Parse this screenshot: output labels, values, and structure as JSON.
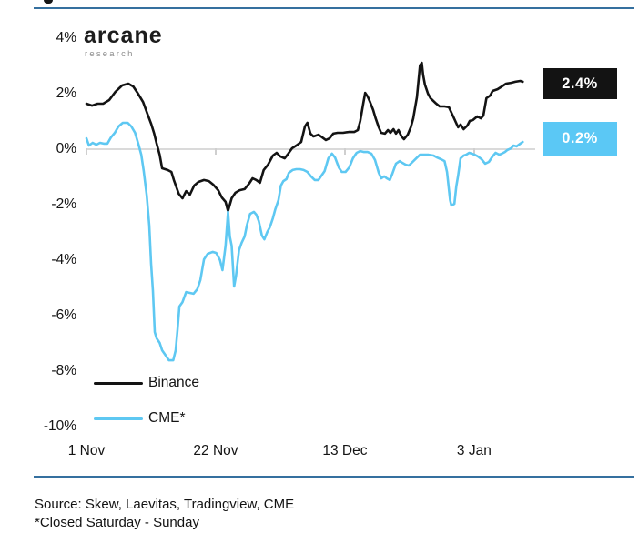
{
  "logo": {
    "brand": "arcane",
    "sub": "research"
  },
  "badges": {
    "binance_value": "2.4%",
    "cme_value": "0.2%"
  },
  "legend": [
    {
      "label": "Binance"
    },
    {
      "label": "CME*"
    }
  ],
  "footer": {
    "source_line": "Source: Skew, Laevitas, Tradingview, CME",
    "note_line": "*Closed Saturday - Sunday"
  },
  "colors": {
    "accent_rule": "#35709f",
    "binance_line": "#131313",
    "cme_line": "#5ec8f2",
    "badge_black_bg": "#131313",
    "badge_blue_bg": "#5bc8f5",
    "zero_gridline": "#dadada"
  },
  "chart_data": {
    "type": "line",
    "title": "",
    "xlabel": "",
    "ylabel": "",
    "ylim": [
      -10,
      4
    ],
    "grid": "zero-line-only",
    "legend_position": "inside-bottom-left",
    "y_ticks": [
      "4%",
      "2%",
      "0%",
      "-2%",
      "-4%",
      "-6%",
      "-8%",
      "-10%"
    ],
    "y_tick_values": [
      4,
      2,
      0,
      -2,
      -4,
      -6,
      -8,
      -10
    ],
    "x_ticks": [
      "1 Nov",
      "22 Nov",
      "13 Dec",
      "3 Jan"
    ],
    "x_tick_days": [
      0,
      21,
      42,
      63
    ],
    "series": [
      {
        "name": "Binance",
        "color": "#131313",
        "end_label": "2.4%",
        "points": [
          [
            0,
            1.64
          ],
          [
            0.9,
            1.57
          ],
          [
            1.8,
            1.64
          ],
          [
            2.7,
            1.64
          ],
          [
            3.7,
            1.77
          ],
          [
            4.7,
            2.07
          ],
          [
            5.8,
            2.3
          ],
          [
            6.8,
            2.36
          ],
          [
            7.6,
            2.26
          ],
          [
            8.3,
            2.03
          ],
          [
            9.2,
            1.7
          ],
          [
            9.9,
            1.28
          ],
          [
            10.5,
            0.92
          ],
          [
            11,
            0.56
          ],
          [
            11.4,
            0.2
          ],
          [
            11.9,
            -0.2
          ],
          [
            12.3,
            -0.69
          ],
          [
            13.2,
            -0.75
          ],
          [
            13.8,
            -0.82
          ],
          [
            14.2,
            -1.11
          ],
          [
            15,
            -1.61
          ],
          [
            15.6,
            -1.77
          ],
          [
            16.2,
            -1.51
          ],
          [
            16.8,
            -1.64
          ],
          [
            17.5,
            -1.31
          ],
          [
            18.2,
            -1.18
          ],
          [
            19.1,
            -1.11
          ],
          [
            19.9,
            -1.15
          ],
          [
            20.6,
            -1.28
          ],
          [
            21.4,
            -1.48
          ],
          [
            22,
            -1.74
          ],
          [
            22.6,
            -1.9
          ],
          [
            23,
            -2.23
          ],
          [
            23.6,
            -1.77
          ],
          [
            24.2,
            -1.57
          ],
          [
            24.9,
            -1.48
          ],
          [
            25.7,
            -1.44
          ],
          [
            26.4,
            -1.25
          ],
          [
            27,
            -1.05
          ],
          [
            27.6,
            -1.11
          ],
          [
            28.2,
            -1.21
          ],
          [
            28.8,
            -0.75
          ],
          [
            29.5,
            -0.56
          ],
          [
            30.3,
            -0.23
          ],
          [
            30.9,
            -0.13
          ],
          [
            31.5,
            -0.26
          ],
          [
            32.2,
            -0.33
          ],
          [
            32.8,
            -0.16
          ],
          [
            33.4,
            0.03
          ],
          [
            34.1,
            0.13
          ],
          [
            34.9,
            0.26
          ],
          [
            35.5,
            0.82
          ],
          [
            35.9,
            0.95
          ],
          [
            36.4,
            0.56
          ],
          [
            36.9,
            0.46
          ],
          [
            37.7,
            0.52
          ],
          [
            38.3,
            0.43
          ],
          [
            38.9,
            0.33
          ],
          [
            39.5,
            0.39
          ],
          [
            40.1,
            0.56
          ],
          [
            40.8,
            0.59
          ],
          [
            41.7,
            0.59
          ],
          [
            42.6,
            0.62
          ],
          [
            43.5,
            0.62
          ],
          [
            44.1,
            0.69
          ],
          [
            44.5,
            1.02
          ],
          [
            45,
            1.67
          ],
          [
            45.3,
            2.03
          ],
          [
            45.7,
            1.9
          ],
          [
            46.1,
            1.7
          ],
          [
            46.6,
            1.41
          ],
          [
            47,
            1.11
          ],
          [
            47.5,
            0.79
          ],
          [
            47.9,
            0.59
          ],
          [
            48.5,
            0.56
          ],
          [
            49,
            0.69
          ],
          [
            49.4,
            0.59
          ],
          [
            49.9,
            0.72
          ],
          [
            50.3,
            0.56
          ],
          [
            50.7,
            0.69
          ],
          [
            51.2,
            0.46
          ],
          [
            51.6,
            0.36
          ],
          [
            52.2,
            0.52
          ],
          [
            52.7,
            0.79
          ],
          [
            53.1,
            1.11
          ],
          [
            53.7,
            1.87
          ],
          [
            54.2,
            3.02
          ],
          [
            54.5,
            3.11
          ],
          [
            54.7,
            2.69
          ],
          [
            55,
            2.33
          ],
          [
            55.5,
            2
          ],
          [
            55.9,
            1.84
          ],
          [
            56.7,
            1.67
          ],
          [
            57.4,
            1.54
          ],
          [
            58.2,
            1.54
          ],
          [
            58.9,
            1.51
          ],
          [
            59.6,
            1.18
          ],
          [
            60.4,
            0.79
          ],
          [
            60.8,
            0.89
          ],
          [
            61.3,
            0.72
          ],
          [
            61.9,
            0.85
          ],
          [
            62.3,
            1.02
          ],
          [
            62.8,
            1.05
          ],
          [
            63.5,
            1.18
          ],
          [
            64.1,
            1.11
          ],
          [
            64.5,
            1.21
          ],
          [
            65,
            1.84
          ],
          [
            65.6,
            1.93
          ],
          [
            66,
            2.1
          ],
          [
            66.8,
            2.16
          ],
          [
            67.5,
            2.26
          ],
          [
            68.2,
            2.36
          ],
          [
            69,
            2.39
          ],
          [
            69.7,
            2.43
          ],
          [
            70.5,
            2.46
          ],
          [
            70.9,
            2.43
          ]
        ]
      },
      {
        "name": "CME*",
        "color": "#5ec8f2",
        "end_label": "0.2%",
        "points": [
          [
            0,
            0.39
          ],
          [
            0.4,
            0.13
          ],
          [
            1,
            0.23
          ],
          [
            1.6,
            0.16
          ],
          [
            2.2,
            0.23
          ],
          [
            2.8,
            0.2
          ],
          [
            3.4,
            0.2
          ],
          [
            4,
            0.43
          ],
          [
            4.6,
            0.59
          ],
          [
            5.2,
            0.82
          ],
          [
            5.9,
            0.95
          ],
          [
            6.7,
            0.95
          ],
          [
            7.3,
            0.82
          ],
          [
            7.9,
            0.59
          ],
          [
            8.5,
            0.13
          ],
          [
            8.9,
            -0.2
          ],
          [
            9.3,
            -0.79
          ],
          [
            9.8,
            -1.67
          ],
          [
            10.2,
            -2.75
          ],
          [
            10.5,
            -4.13
          ],
          [
            10.8,
            -5.11
          ],
          [
            11.1,
            -6.59
          ],
          [
            11.4,
            -6.82
          ],
          [
            11.9,
            -6.98
          ],
          [
            12.3,
            -7.25
          ],
          [
            12.8,
            -7.41
          ],
          [
            13.4,
            -7.61
          ],
          [
            14.1,
            -7.61
          ],
          [
            14.5,
            -7.25
          ],
          [
            14.8,
            -6.52
          ],
          [
            15.1,
            -5.67
          ],
          [
            15.6,
            -5.51
          ],
          [
            16.2,
            -5.15
          ],
          [
            16.8,
            -5.18
          ],
          [
            17.4,
            -5.21
          ],
          [
            18,
            -5.05
          ],
          [
            18.5,
            -4.72
          ],
          [
            19.1,
            -3.97
          ],
          [
            19.7,
            -3.77
          ],
          [
            20.5,
            -3.7
          ],
          [
            21.1,
            -3.74
          ],
          [
            21.7,
            -4
          ],
          [
            22.1,
            -4.36
          ],
          [
            22.6,
            -3.48
          ],
          [
            23,
            -2.26
          ],
          [
            23.3,
            -3.15
          ],
          [
            23.6,
            -3.48
          ],
          [
            24,
            -4.95
          ],
          [
            24.3,
            -4.56
          ],
          [
            24.8,
            -3.64
          ],
          [
            25.2,
            -3.38
          ],
          [
            25.7,
            -3.15
          ],
          [
            26.1,
            -2.72
          ],
          [
            26.6,
            -2.33
          ],
          [
            27.2,
            -2.26
          ],
          [
            27.6,
            -2.36
          ],
          [
            28,
            -2.59
          ],
          [
            28.5,
            -3.11
          ],
          [
            28.9,
            -3.25
          ],
          [
            29.4,
            -2.98
          ],
          [
            29.8,
            -2.82
          ],
          [
            30.3,
            -2.49
          ],
          [
            30.7,
            -2.16
          ],
          [
            31.2,
            -1.84
          ],
          [
            31.6,
            -1.31
          ],
          [
            32,
            -1.15
          ],
          [
            32.5,
            -1.08
          ],
          [
            32.9,
            -0.85
          ],
          [
            33.5,
            -0.75
          ],
          [
            34.1,
            -0.72
          ],
          [
            34.7,
            -0.72
          ],
          [
            35.3,
            -0.75
          ],
          [
            35.9,
            -0.82
          ],
          [
            36.5,
            -0.98
          ],
          [
            37.1,
            -1.11
          ],
          [
            37.7,
            -1.11
          ],
          [
            38.1,
            -0.98
          ],
          [
            38.7,
            -0.79
          ],
          [
            39.3,
            -0.33
          ],
          [
            39.9,
            -0.16
          ],
          [
            40.4,
            -0.3
          ],
          [
            41,
            -0.66
          ],
          [
            41.5,
            -0.82
          ],
          [
            42.1,
            -0.82
          ],
          [
            42.7,
            -0.66
          ],
          [
            43.3,
            -0.33
          ],
          [
            43.9,
            -0.13
          ],
          [
            44.5,
            -0.07
          ],
          [
            45.1,
            -0.1
          ],
          [
            45.7,
            -0.1
          ],
          [
            46.3,
            -0.16
          ],
          [
            46.9,
            -0.39
          ],
          [
            47.5,
            -0.85
          ],
          [
            47.9,
            -1.05
          ],
          [
            48.4,
            -0.98
          ],
          [
            48.8,
            -1.05
          ],
          [
            49.3,
            -1.11
          ],
          [
            49.7,
            -0.89
          ],
          [
            50.3,
            -0.52
          ],
          [
            50.9,
            -0.43
          ],
          [
            51.3,
            -0.49
          ],
          [
            51.9,
            -0.56
          ],
          [
            52.4,
            -0.59
          ],
          [
            53,
            -0.46
          ],
          [
            53.6,
            -0.33
          ],
          [
            54.2,
            -0.2
          ],
          [
            54.9,
            -0.2
          ],
          [
            55.6,
            -0.2
          ],
          [
            56.4,
            -0.23
          ],
          [
            57,
            -0.3
          ],
          [
            57.6,
            -0.36
          ],
          [
            58.2,
            -0.43
          ],
          [
            58.6,
            -0.82
          ],
          [
            59.1,
            -1.84
          ],
          [
            59.3,
            -2.03
          ],
          [
            59.8,
            -1.97
          ],
          [
            60.1,
            -1.34
          ],
          [
            60.4,
            -0.95
          ],
          [
            60.8,
            -0.33
          ],
          [
            61.3,
            -0.23
          ],
          [
            61.7,
            -0.2
          ],
          [
            62.2,
            -0.13
          ],
          [
            62.6,
            -0.16
          ],
          [
            63.1,
            -0.2
          ],
          [
            63.6,
            -0.26
          ],
          [
            64.2,
            -0.36
          ],
          [
            64.8,
            -0.52
          ],
          [
            65.4,
            -0.46
          ],
          [
            66,
            -0.26
          ],
          [
            66.5,
            -0.13
          ],
          [
            67.1,
            -0.2
          ],
          [
            67.5,
            -0.16
          ],
          [
            68,
            -0.1
          ],
          [
            68.4,
            -0.03
          ],
          [
            69,
            0.03
          ],
          [
            69.4,
            0.13
          ],
          [
            69.9,
            0.1
          ],
          [
            70.5,
            0.2
          ],
          [
            70.9,
            0.26
          ]
        ]
      }
    ]
  }
}
